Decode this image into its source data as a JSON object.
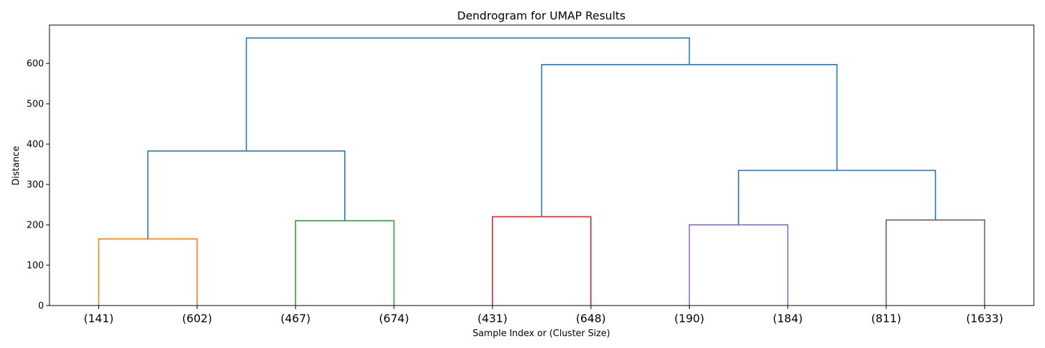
{
  "chart_data": {
    "type": "dendrogram",
    "title": "Dendrogram for UMAP Results",
    "xlabel": "Sample Index or (Cluster Size)",
    "ylabel": "Distance",
    "ylim": [
      0,
      695
    ],
    "yticks": [
      0,
      100,
      200,
      300,
      400,
      500,
      600
    ],
    "leaves": [
      "(141)",
      "(602)",
      "(467)",
      "(674)",
      "(431)",
      "(648)",
      "(190)",
      "(184)",
      "(811)",
      "(1633)"
    ],
    "merges": [
      {
        "left": 0,
        "right": 1,
        "height": 165,
        "color": "#ff7f0e"
      },
      {
        "left": 2,
        "right": 3,
        "height": 210,
        "color": "#2ca02c"
      },
      {
        "left": 4,
        "right": 5,
        "height": 220,
        "color": "#d62728"
      },
      {
        "left": 6,
        "right": 7,
        "height": 200,
        "color": "#9467bd"
      },
      {
        "left": 8,
        "right": 9,
        "height": 212,
        "color": "#8c564b"
      },
      {
        "left": 10,
        "right": 11,
        "height": 383,
        "color": "#1f77b4"
      },
      {
        "left": 13,
        "right": 14,
        "height": 335,
        "color": "#1f77b4"
      },
      {
        "left": 12,
        "right": 16,
        "height": 597,
        "color": "#1f77b4"
      },
      {
        "left": 15,
        "right": 17,
        "height": 663,
        "color": "#1f77b4"
      }
    ]
  }
}
